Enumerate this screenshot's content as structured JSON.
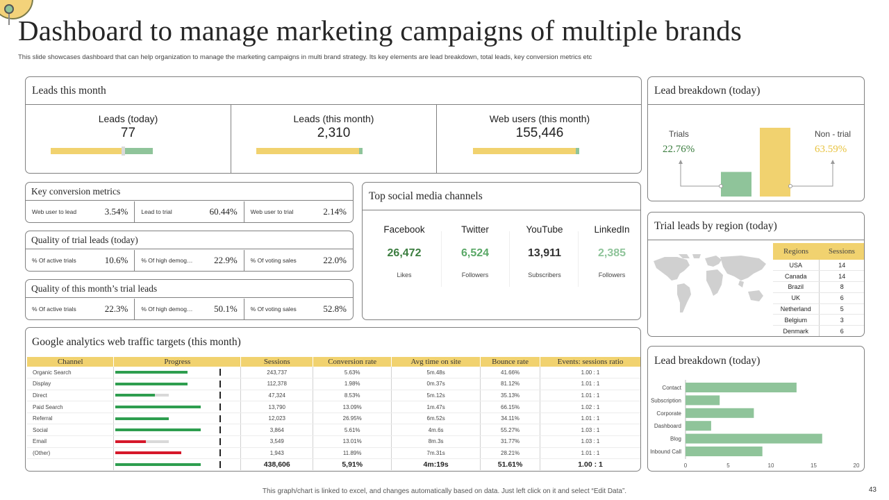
{
  "page": {
    "title": "Dashboard to manage marketing campaigns of multiple brands",
    "subtitle": "This slide showcases dashboard that can help organization to manage the marketing campaigns in multi brand strategy. Its key elements are lead breakdown, total leads, key conversion metrics etc",
    "footnote": "This graph/chart is linked to excel, and changes automatically based on data. Just left click on it and select “Edit Data”.",
    "page_number": "43"
  },
  "colors": {
    "yellow": "#f1d26f",
    "green": "#8fc49a",
    "dark_green": "#2e9e4f",
    "red": "#d6182a",
    "text_green": "#3b7d3f",
    "text_yellow": "#e8c340"
  },
  "leads": {
    "title": "Leads this month",
    "kpis": [
      {
        "label": "Leads (today)",
        "value": "77",
        "fill": 0.72
      },
      {
        "label": "Leads (this month)",
        "value": "2,310",
        "fill": 0.97
      },
      {
        "label": "Web users (this month)",
        "value": "155,446",
        "fill": 0.97
      }
    ]
  },
  "key_conversion": {
    "title": "Key conversion metrics",
    "cells": [
      {
        "label": "Web user to lead",
        "value": "3.54%"
      },
      {
        "label": "Lead to trial",
        "value": "60.44%"
      },
      {
        "label": "Web user to trial",
        "value": "2.14%"
      }
    ]
  },
  "quality_today": {
    "title": "Quality of trial leads (today)",
    "cells": [
      {
        "label": "% Of active trials",
        "value": "10.6%"
      },
      {
        "label": "% Of high demog…",
        "value": "22.9%"
      },
      {
        "label": "% Of voting sales",
        "value": "22.0%"
      }
    ]
  },
  "quality_month": {
    "title": "Quality of this month’s trial leads",
    "cells": [
      {
        "label": "% Of active trials",
        "value": "22.3%"
      },
      {
        "label": "% Of high demog…",
        "value": "50.1%"
      },
      {
        "label": "% Of voting sales",
        "value": "52.8%"
      }
    ]
  },
  "social": {
    "title": "Top social media channels",
    "channels": [
      {
        "name": "Facebook",
        "value": "26,472",
        "sub": "Likes",
        "color": "#3b7d3f"
      },
      {
        "name": "Twitter",
        "value": "6,524",
        "sub": "Followers",
        "color": "#5aa867"
      },
      {
        "name": "YouTube",
        "value": "13,911",
        "sub": "Subscribers",
        "color": "#333333"
      },
      {
        "name": "LinkedIn",
        "value": "2,385",
        "sub": "Followers",
        "color": "#8fc49a"
      }
    ]
  },
  "traffic": {
    "title": "Google analytics web traffic targets (this month)",
    "columns": [
      "Channel",
      "Progress",
      "Sessions",
      "Conversion rate",
      "Avg time on site",
      "Bounce rate",
      "Events: sessions ratio"
    ],
    "rows": [
      {
        "channel": "Organic Search",
        "progress": 0.69,
        "target": 0.51,
        "bar": "green",
        "sessions": "243,737",
        "conv": "5.63%",
        "time": "5m.48s",
        "bounce": "41.66%",
        "ratio": "1.00 : 1"
      },
      {
        "channel": "Display",
        "progress": 0.69,
        "target": 0.51,
        "bar": "green",
        "sessions": "112,378",
        "conv": "1.98%",
        "time": "0m.37s",
        "bounce": "81.12%",
        "ratio": "1.01 : 1"
      },
      {
        "channel": "Direct",
        "progress": 0.38,
        "target": 0.51,
        "bar": "green",
        "sessions": "47,324",
        "conv": "8.53%",
        "time": "5m.12s",
        "bounce": "35.13%",
        "ratio": "1.01 : 1"
      },
      {
        "channel": "Paid Search",
        "progress": 0.82,
        "target": 0.51,
        "bar": "green",
        "sessions": "13,790",
        "conv": "13.09%",
        "time": "1m.47s",
        "bounce": "66.15%",
        "ratio": "1.02 : 1"
      },
      {
        "channel": "Referral",
        "progress": 0.51,
        "target": 0.51,
        "bar": "green",
        "sessions": "12,023",
        "conv": "26.95%",
        "time": "6m.52s",
        "bounce": "34.11%",
        "ratio": "1.01 : 1"
      },
      {
        "channel": "Social",
        "progress": 0.82,
        "target": 0.51,
        "bar": "green",
        "sessions": "3,864",
        "conv": "5.61%",
        "time": "4m.6s",
        "bounce": "55.27%",
        "ratio": "1.03 : 1"
      },
      {
        "channel": "Email",
        "progress": 0.29,
        "target": 0.51,
        "bar": "red",
        "sessions": "3,549",
        "conv": "13.01%",
        "time": "8m.3s",
        "bounce": "31.77%",
        "ratio": "1.03 : 1"
      },
      {
        "channel": "(Other)",
        "progress": 0.63,
        "target": 0.51,
        "bar": "red",
        "sessions": "1,943",
        "conv": "11.89%",
        "time": "7m.31s",
        "bounce": "28.21%",
        "ratio": "1.01 : 1"
      }
    ],
    "total": {
      "progress": 0.82,
      "target": 0.51,
      "bar": "green",
      "sessions": "438,606",
      "conv": "5,91%",
      "time": "4m:19s",
      "bounce": "51.61%",
      "ratio": "1.00 : 1"
    }
  },
  "lead_breakdown_today": {
    "title": "Lead breakdown (today)",
    "left_label": "Trials",
    "left_value": "22.76%",
    "right_label": "Non - trial",
    "right_value": "63.59%"
  },
  "region": {
    "title": "Trial leads by region (today)",
    "columns": [
      "Regions",
      "Sessions"
    ],
    "rows": [
      {
        "region": "USA",
        "sessions": "14"
      },
      {
        "region": "Canada",
        "sessions": "14"
      },
      {
        "region": "Brazil",
        "sessions": "8"
      },
      {
        "region": "UK",
        "sessions": "6"
      },
      {
        "region": "Netherland",
        "sessions": "5"
      },
      {
        "region": "Belgium",
        "sessions": "3"
      },
      {
        "region": "Denmark",
        "sessions": "6"
      }
    ]
  },
  "chart_data": [
    {
      "type": "bar",
      "title": "Lead breakdown (today)",
      "categories": [
        "Trials",
        "Non - trial"
      ],
      "values": [
        22.76,
        63.59
      ],
      "ylim": [
        0,
        70
      ],
      "grid": false
    },
    {
      "type": "bar",
      "orientation": "horizontal",
      "title": "Lead breakdown (today)",
      "categories": [
        "Contact",
        "Subscription",
        "Corporate",
        "Dashboard",
        "Blog",
        "Inbound Call"
      ],
      "values": [
        13,
        4,
        8,
        3,
        16,
        9
      ],
      "xlim": [
        0,
        20
      ],
      "xticks": [
        "0",
        "5",
        "10",
        "15",
        "20"
      ],
      "grid": false
    }
  ]
}
